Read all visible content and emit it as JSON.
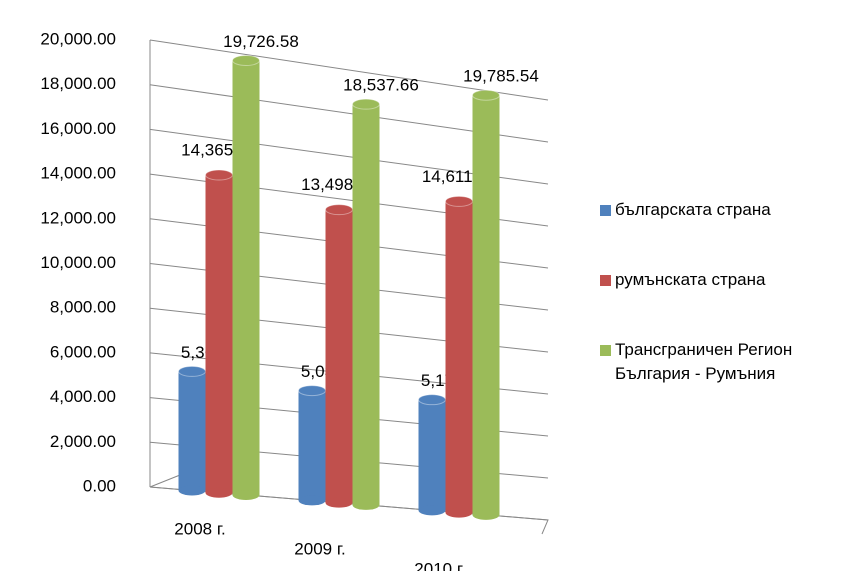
{
  "chart_data": {
    "type": "bar3d",
    "categories": [
      "2008 г.",
      "2009 г.",
      "2010 г."
    ],
    "series": [
      {
        "name": "българската страна",
        "color": "#4f81bd",
        "values": [
          5361.41,
          5038.78,
          5174.27
        ],
        "value_labels": [
          "5,361.41",
          "5,038.78",
          "5,174.27"
        ]
      },
      {
        "name": "румънската страна",
        "color": "#c0504d",
        "values": [
          14365.17,
          13498.88,
          14611.26
        ],
        "value_labels": [
          "14,365.17",
          "13,498.88",
          "14,611.26"
        ]
      },
      {
        "name": "Трансграничен Регион България - Румъния",
        "color": "#9bbb59",
        "values": [
          19726.58,
          18537.66,
          19785.54
        ],
        "value_labels": [
          "19,726.58",
          "18,537.66",
          "19,785.54"
        ]
      }
    ],
    "ylim": [
      0,
      20000
    ],
    "yticks": [
      {
        "value": 0,
        "label": "0.00"
      },
      {
        "value": 2000,
        "label": "2,000.00"
      },
      {
        "value": 4000,
        "label": "4,000.00"
      },
      {
        "value": 6000,
        "label": "6,000.00"
      },
      {
        "value": 8000,
        "label": "8,000.00"
      },
      {
        "value": 10000,
        "label": "10,000.00"
      },
      {
        "value": 12000,
        "label": "12,000.00"
      },
      {
        "value": 14000,
        "label": "14,000.00"
      },
      {
        "value": 16000,
        "label": "16,000.00"
      },
      {
        "value": 18000,
        "label": "18,000.00"
      },
      {
        "value": 20000,
        "label": "20,000.00"
      }
    ],
    "grid": true,
    "legend": "right"
  }
}
